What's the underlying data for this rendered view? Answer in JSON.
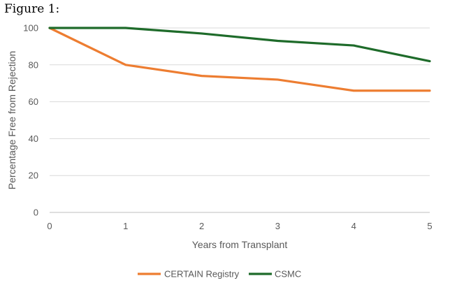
{
  "figure_caption": "Figure 1:",
  "chart_data": {
    "type": "line",
    "x": [
      0,
      1,
      2,
      3,
      4,
      5
    ],
    "series": [
      {
        "name": "CERTAIN Registry",
        "values": [
          100,
          80,
          74,
          72,
          66,
          66
        ],
        "color": "#ED7D31"
      },
      {
        "name": "CSMC",
        "values": [
          100,
          100,
          97,
          93,
          90.5,
          82
        ],
        "color": "#1E6B2A"
      }
    ],
    "xlabel": "Years from Transplant",
    "ylabel": "Percentage Free from Rejection",
    "xlim": [
      0,
      5
    ],
    "ylim": [
      0,
      100
    ],
    "x_ticks": [
      "0",
      "1",
      "2",
      "3",
      "4",
      "5"
    ],
    "y_ticks": [
      "0",
      "20",
      "40",
      "60",
      "80",
      "100"
    ],
    "grid": "horizontal",
    "legend_position": "bottom",
    "colors": {
      "grid": "#D9D9D9",
      "axis": "#BFBFBF",
      "text": "#595959"
    }
  }
}
